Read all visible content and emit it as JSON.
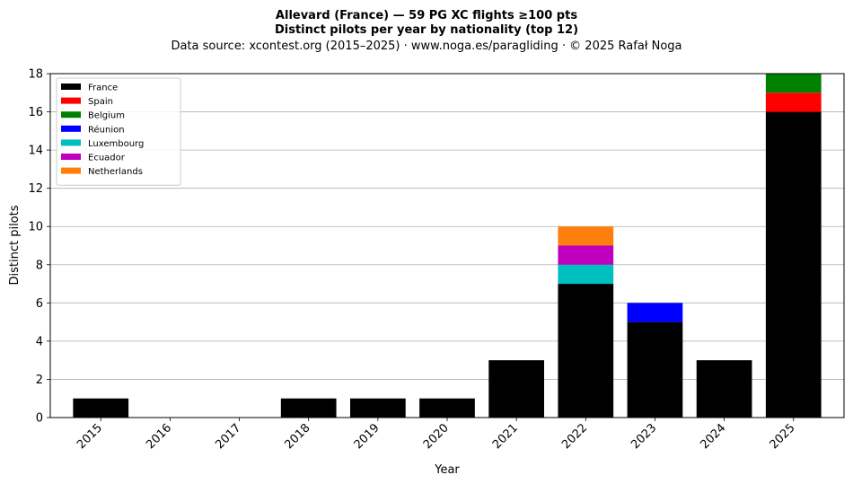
{
  "chart_data": {
    "type": "bar",
    "stacked": true,
    "title_line1": "Allevard (France)  —  59 PG XC flights ≥100 pts",
    "title_line2": "Distinct pilots per year by nationality (top 12)",
    "subtitle": "Data source: xcontest.org (2015–2025)  ·  www.noga.es/paragliding  ·  © 2025 Rafał Noga",
    "xlabel": "Year",
    "ylabel": "Distinct pilots",
    "categories": [
      "2015",
      "2016",
      "2017",
      "2018",
      "2019",
      "2020",
      "2021",
      "2022",
      "2023",
      "2024",
      "2025"
    ],
    "ylim": [
      0,
      18
    ],
    "yticks": [
      "0",
      "2",
      "4",
      "6",
      "8",
      "10",
      "12",
      "14",
      "16",
      "18"
    ],
    "grid": "y",
    "legend_position": "top-left",
    "series": [
      {
        "name": "France",
        "color": "#000000",
        "values": [
          1,
          0,
          0,
          1,
          1,
          1,
          3,
          7,
          5,
          3,
          16
        ]
      },
      {
        "name": "Spain",
        "color": "#ff0000",
        "values": [
          0,
          0,
          0,
          0,
          0,
          0,
          0,
          0,
          0,
          0,
          1
        ]
      },
      {
        "name": "Belgium",
        "color": "#008000",
        "values": [
          0,
          0,
          0,
          0,
          0,
          0,
          0,
          0,
          0,
          0,
          1
        ]
      },
      {
        "name": "Réunion",
        "color": "#0000ff",
        "values": [
          0,
          0,
          0,
          0,
          0,
          0,
          0,
          0,
          1,
          0,
          0
        ]
      },
      {
        "name": "Luxembourg",
        "color": "#00bfbf",
        "values": [
          0,
          0,
          0,
          0,
          0,
          0,
          0,
          1,
          0,
          0,
          0
        ]
      },
      {
        "name": "Ecuador",
        "color": "#bf00bf",
        "values": [
          0,
          0,
          0,
          0,
          0,
          0,
          0,
          1,
          0,
          0,
          0
        ]
      },
      {
        "name": "Netherlands",
        "color": "#ff7f0e",
        "values": [
          0,
          0,
          0,
          0,
          0,
          0,
          0,
          1,
          0,
          0,
          0
        ]
      }
    ]
  }
}
